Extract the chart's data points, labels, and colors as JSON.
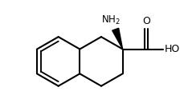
{
  "background_color": "#ffffff",
  "line_color": "#000000",
  "line_width": 1.5,
  "font_size_label": 8.5,
  "NH2_label": "NH$_2$",
  "O_label": "O",
  "HO_label": "HO",
  "figsize": [
    2.3,
    1.34
  ],
  "dpi": 100,
  "r": 0.62,
  "bx": 1.85,
  "by": 2.1
}
